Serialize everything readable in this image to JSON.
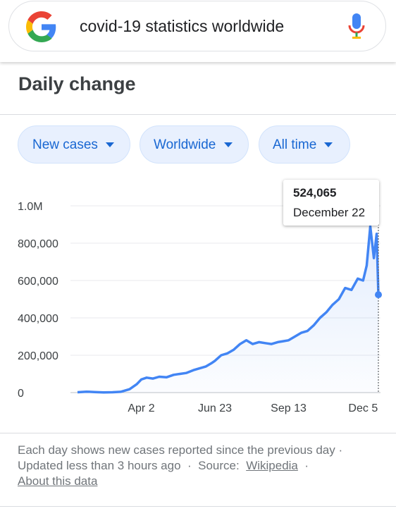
{
  "search": {
    "query": "covid-19 statistics worldwide"
  },
  "panel": {
    "title": "Daily change"
  },
  "filters": {
    "metric": "New cases",
    "region": "Worldwide",
    "range": "All time"
  },
  "tooltip": {
    "value": "524,065",
    "date": "December 22"
  },
  "footer": {
    "line1": "Each day shows new cases reported since the previous day ·",
    "updated": "Updated less than 3 hours ago",
    "sep1": "·",
    "source_label": "Source:",
    "source_link": "Wikipedia",
    "sep2": "·",
    "about_link": "About this data"
  },
  "colors": {
    "line": "#4285f4",
    "chip_bg": "#e8f0fe",
    "chip_text": "#1967d2"
  },
  "chart_data": {
    "type": "line",
    "series": [
      {
        "x": [
          "2020-01-22",
          "2020-02-01",
          "2020-02-10",
          "2020-02-20",
          "2020-03-01",
          "2020-03-10",
          "2020-03-20",
          "2020-03-28",
          "2020-04-02",
          "2020-04-08",
          "2020-04-15",
          "2020-04-22",
          "2020-04-30",
          "2020-05-08",
          "2020-05-15",
          "2020-05-22",
          "2020-05-30",
          "2020-06-06",
          "2020-06-13",
          "2020-06-20",
          "2020-06-23",
          "2020-06-30",
          "2020-07-07",
          "2020-07-14",
          "2020-07-21",
          "2020-07-28",
          "2020-08-04",
          "2020-08-11",
          "2020-08-18",
          "2020-08-25",
          "2020-09-01",
          "2020-09-07",
          "2020-09-13",
          "2020-09-20",
          "2020-09-27",
          "2020-10-04",
          "2020-10-11",
          "2020-10-18",
          "2020-10-25",
          "2020-11-01",
          "2020-11-08",
          "2020-11-15",
          "2020-11-22",
          "2020-11-29",
          "2020-12-05",
          "2020-12-09",
          "2020-12-13",
          "2020-12-17",
          "2020-12-20",
          "2020-12-22"
        ],
        "values": [
          2000,
          5000,
          3000,
          1000,
          2000,
          4000,
          18000,
          45000,
          70000,
          80000,
          75000,
          85000,
          82000,
          95000,
          100000,
          105000,
          120000,
          130000,
          140000,
          160000,
          170000,
          200000,
          210000,
          230000,
          260000,
          280000,
          260000,
          270000,
          265000,
          260000,
          270000,
          275000,
          280000,
          300000,
          320000,
          330000,
          360000,
          400000,
          430000,
          470000,
          500000,
          560000,
          550000,
          610000,
          600000,
          680000,
          890000,
          720000,
          850000,
          524065
        ]
      }
    ],
    "x_ticks": [
      "Apr 2",
      "Jun 23",
      "Sep 13",
      "Dec 5"
    ],
    "y_ticks": [
      "0",
      "200,000",
      "400,000",
      "600,000",
      "800,000",
      "1.0M"
    ],
    "ylim": [
      0,
      1000000
    ],
    "grid": true
  }
}
